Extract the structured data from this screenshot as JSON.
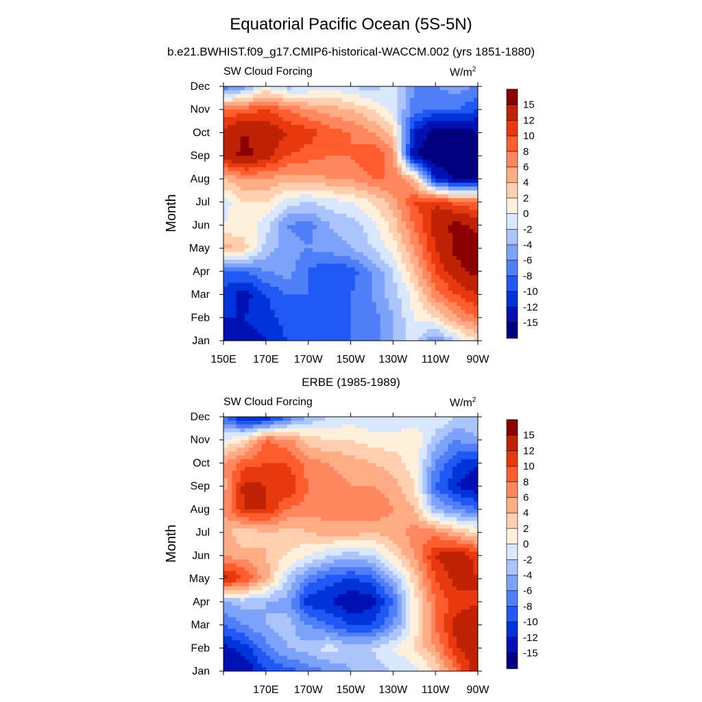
{
  "title": "Equatorial Pacific Ocean (5S-5N)",
  "subtitle": "b.e21.BWHIST.f09_g17.CMIP6-historical-WACCM.002 (yrs 1851-1880)",
  "panels": [
    {
      "left_string": "SW Cloud Forcing",
      "right_string": "W/m",
      "right_sup": "2",
      "ylabel": "Month",
      "center_string": ""
    },
    {
      "left_string": "SW Cloud Forcing",
      "right_string": "W/m",
      "right_sup": "2",
      "ylabel": "Month",
      "center_string": "ERBE (1985-1989)"
    }
  ],
  "colors": {
    "levels": [
      "#00007f",
      "#0012b3",
      "#0034da",
      "#1f58f5",
      "#4f7ef8",
      "#7da2fa",
      "#abc4fc",
      "#d8e7fe",
      "#fff0dc",
      "#ffcfaf",
      "#ffab85",
      "#ff865d",
      "#ff5d2e",
      "#e8390e",
      "#bf2304",
      "#8b0000"
    ]
  },
  "chart_data": [
    {
      "type": "heatmap",
      "title": "SW Cloud Forcing",
      "units": "W/m2",
      "xlabel": "",
      "ylabel": "Month",
      "x_ticklabels": [
        "150E",
        "170E",
        "170W",
        "150W",
        "130W",
        "110W",
        "90W"
      ],
      "y_ticklabels": [
        "Jan",
        "Feb",
        "Mar",
        "Apr",
        "May",
        "Jun",
        "Jul",
        "Aug",
        "Sep",
        "Oct",
        "Nov",
        "Dec"
      ],
      "colorbar_labels": [
        "15",
        "12",
        "10",
        "8",
        "6",
        "4",
        "2",
        "0",
        "-2",
        "-4",
        "-6",
        "-8",
        "-10",
        "-12",
        "-15"
      ],
      "longitudes_east": [
        150,
        160,
        170,
        180,
        190,
        200,
        210,
        220,
        230,
        240,
        250,
        260,
        270
      ],
      "months": [
        "Jan",
        "Feb",
        "Mar",
        "Apr",
        "May",
        "Jun",
        "Jul",
        "Aug",
        "Sep",
        "Oct",
        "Nov",
        "Dec"
      ],
      "values": [
        [
          -15,
          -13,
          -12,
          -10,
          -9,
          -9,
          -8,
          -7,
          -4,
          -1,
          -6,
          -2,
          3
        ],
        [
          -12,
          -12,
          -11,
          -9,
          -9,
          -9,
          -8,
          -7,
          -4,
          0,
          2,
          6,
          8
        ],
        [
          -11,
          -13,
          -10,
          -8,
          -8,
          -9,
          -8,
          -6,
          -3,
          1,
          7,
          10,
          12
        ],
        [
          -8,
          -8,
          -6,
          -5,
          -8,
          -10,
          -9,
          -6,
          -2,
          4,
          10,
          14,
          16
        ],
        [
          5,
          3,
          -3,
          -5,
          -6,
          -5,
          -4,
          -2,
          1,
          6,
          12,
          16,
          17
        ],
        [
          0,
          1,
          -1,
          -6,
          -7,
          -4,
          -3,
          -1,
          3,
          8,
          13,
          16,
          14
        ],
        [
          -1,
          2,
          2,
          -1,
          -2,
          -1,
          0,
          2,
          5,
          10,
          12,
          9,
          8
        ],
        [
          4,
          6,
          6,
          5,
          5,
          6,
          6,
          8,
          8,
          4,
          -12,
          -16,
          -16
        ],
        [
          13,
          16,
          13,
          10,
          9,
          8,
          8,
          10,
          7,
          -15,
          -17,
          -17,
          -17
        ],
        [
          13,
          15,
          14,
          12,
          11,
          9,
          8,
          6,
          3,
          -12,
          -17,
          -17,
          -15
        ],
        [
          8,
          9,
          10,
          8,
          6,
          5,
          4,
          2,
          -1,
          -7,
          -8,
          -8,
          -10
        ],
        [
          -8,
          -5,
          0,
          -3,
          -2,
          -1,
          -2,
          -3,
          -1,
          -6,
          -6,
          -5,
          -6
        ]
      ]
    },
    {
      "type": "heatmap",
      "title": "SW Cloud Forcing",
      "subtitle": "ERBE (1985-1989)",
      "units": "W/m2",
      "xlabel": "",
      "ylabel": "Month",
      "x_ticklabels": [
        "170E",
        "170W",
        "150W",
        "130W",
        "110W",
        "90W"
      ],
      "y_ticklabels": [
        "Jan",
        "Feb",
        "Mar",
        "Apr",
        "May",
        "Jun",
        "Jul",
        "Aug",
        "Sep",
        "Oct",
        "Nov",
        "Dec"
      ],
      "colorbar_labels": [
        "15",
        "12",
        "10",
        "8",
        "6",
        "4",
        "2",
        "0",
        "-2",
        "-4",
        "-6",
        "-8",
        "-10",
        "-12",
        "-15"
      ],
      "longitudes_east": [
        150,
        160,
        170,
        180,
        190,
        200,
        210,
        220,
        230,
        240,
        250,
        260,
        270
      ],
      "months": [
        "Jan",
        "Feb",
        "Mar",
        "Apr",
        "May",
        "Jun",
        "Jul",
        "Aug",
        "Sep",
        "Oct",
        "Nov",
        "Dec"
      ],
      "values": [
        [
          -12,
          -14,
          -10,
          -9,
          -7,
          -6,
          -4,
          -3,
          -2,
          -1,
          2,
          8,
          14
        ],
        [
          -13,
          -11,
          -7,
          -4,
          -3,
          -1,
          -3,
          -2,
          0,
          2,
          6,
          12,
          14
        ],
        [
          -8,
          -6,
          -4,
          -3,
          -6,
          -8,
          -10,
          -10,
          -6,
          1,
          8,
          13,
          13
        ],
        [
          -4,
          -3,
          -4,
          -5,
          -11,
          -12,
          -14,
          -13,
          -8,
          1,
          8,
          11,
          12
        ],
        [
          13,
          10,
          5,
          -2,
          -7,
          -9,
          -10,
          -9,
          -4,
          3,
          10,
          13,
          12
        ],
        [
          6,
          5,
          4,
          2,
          0,
          -2,
          -3,
          -2,
          2,
          6,
          12,
          14,
          11
        ],
        [
          5,
          2,
          4,
          3,
          4,
          5,
          5,
          4,
          5,
          7,
          7,
          4,
          2
        ],
        [
          6,
          12,
          12,
          8,
          7,
          7,
          7,
          8,
          6,
          4,
          -4,
          -6,
          -8
        ],
        [
          5,
          13,
          12,
          12,
          8,
          7,
          6,
          6,
          5,
          2,
          -8,
          -12,
          -14
        ],
        [
          6,
          9,
          10,
          10,
          7,
          6,
          5,
          4,
          3,
          1,
          -6,
          -10,
          -12
        ],
        [
          0,
          2,
          8,
          7,
          3,
          2,
          2,
          1,
          1,
          2,
          -3,
          -6,
          -4
        ],
        [
          -8,
          -13,
          -13,
          -8,
          -4,
          -2,
          -1,
          -2,
          -2,
          -2,
          0,
          -2,
          -3
        ]
      ]
    }
  ]
}
